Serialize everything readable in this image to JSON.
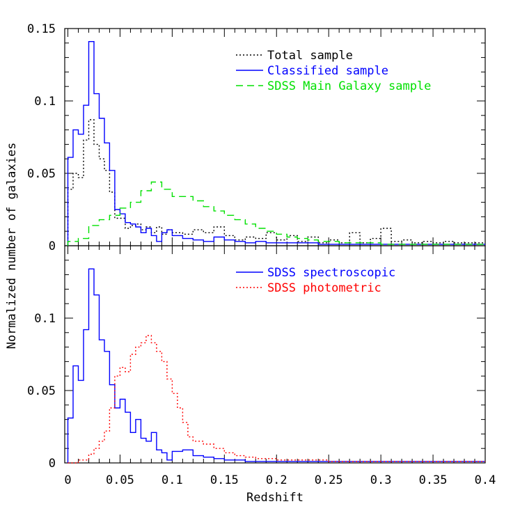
{
  "chart_data": [
    {
      "type": "line",
      "panel": "top",
      "xlabel": "Redshift",
      "ylabel": "Normalized number of galaxies",
      "xlim": [
        -0.003,
        0.4
      ],
      "ylim": [
        0,
        0.15
      ],
      "yticks": [
        "0",
        "0.05",
        "0.1",
        "0.15"
      ],
      "grid": false,
      "legend_position": "top-right",
      "series": [
        {
          "name": "Total sample",
          "color": "#000000",
          "linestyle": "dotted",
          "x": [
            0,
            0.005,
            0.01,
            0.015,
            0.02,
            0.025,
            0.03,
            0.035,
            0.04,
            0.045,
            0.05,
            0.055,
            0.06,
            0.065,
            0.07,
            0.075,
            0.08,
            0.085,
            0.09,
            0.095,
            0.1,
            0.11,
            0.12,
            0.13,
            0.14,
            0.15,
            0.16,
            0.17,
            0.18,
            0.19,
            0.2,
            0.21,
            0.22,
            0.23,
            0.24,
            0.25,
            0.26,
            0.27,
            0.28,
            0.29,
            0.3,
            0.31,
            0.32,
            0.33,
            0.34,
            0.35,
            0.36,
            0.37,
            0.38,
            0.39,
            0.4
          ],
          "y": [
            0.039,
            0.05,
            0.047,
            0.073,
            0.087,
            0.07,
            0.06,
            0.052,
            0.037,
            0.019,
            0.019,
            0.012,
            0.014,
            0.015,
            0.011,
            0.013,
            0.009,
            0.013,
            0.008,
            0.011,
            0.009,
            0.008,
            0.011,
            0.009,
            0.013,
            0.007,
            0.004,
            0.006,
            0.005,
            0.009,
            0.004,
            0.007,
            0.003,
            0.006,
            0.002,
            0.004,
            0.002,
            0.009,
            0.002,
            0.005,
            0.012,
            0.003,
            0.004,
            0.002,
            0.003,
            0.002,
            0.003,
            0.002,
            0.002,
            0.002,
            0.002
          ]
        },
        {
          "name": "Classified sample",
          "color": "#0000ff",
          "linestyle": "solid",
          "x": [
            0,
            0.005,
            0.01,
            0.015,
            0.02,
            0.025,
            0.03,
            0.035,
            0.04,
            0.045,
            0.05,
            0.055,
            0.06,
            0.065,
            0.07,
            0.075,
            0.08,
            0.085,
            0.09,
            0.095,
            0.1,
            0.11,
            0.12,
            0.13,
            0.14,
            0.15,
            0.16,
            0.17,
            0.18,
            0.19,
            0.2,
            0.22,
            0.24,
            0.26,
            0.28,
            0.3,
            0.32,
            0.34,
            0.36,
            0.38,
            0.4
          ],
          "y": [
            0.061,
            0.08,
            0.077,
            0.097,
            0.141,
            0.105,
            0.088,
            0.071,
            0.052,
            0.025,
            0.022,
            0.016,
            0.015,
            0.013,
            0.009,
            0.012,
            0.007,
            0.003,
            0.009,
            0.011,
            0.007,
            0.005,
            0.004,
            0.003,
            0.006,
            0.004,
            0.003,
            0.002,
            0.003,
            0.002,
            0.002,
            0.002,
            0.001,
            0.001,
            0.001,
            0.001,
            0.001,
            0.001,
            0.001,
            0.001,
            0.001
          ]
        },
        {
          "name": "SDSS Main Galaxy sample",
          "color": "#00e000",
          "linestyle": "dashed",
          "x": [
            0,
            0.01,
            0.02,
            0.03,
            0.04,
            0.05,
            0.06,
            0.07,
            0.08,
            0.09,
            0.1,
            0.11,
            0.12,
            0.13,
            0.14,
            0.15,
            0.16,
            0.17,
            0.18,
            0.19,
            0.2,
            0.21,
            0.22,
            0.23,
            0.24,
            0.25,
            0.26,
            0.28,
            0.3,
            0.32,
            0.34,
            0.36,
            0.38,
            0.4
          ],
          "y": [
            0.003,
            0.005,
            0.014,
            0.018,
            0.021,
            0.026,
            0.03,
            0.038,
            0.044,
            0.039,
            0.034,
            0.034,
            0.031,
            0.027,
            0.024,
            0.021,
            0.018,
            0.015,
            0.012,
            0.01,
            0.008,
            0.006,
            0.005,
            0.004,
            0.003,
            0.003,
            0.002,
            0.002,
            0.001,
            0.001,
            0.001,
            0.001,
            0.001,
            0.001
          ]
        }
      ]
    },
    {
      "type": "line",
      "panel": "bottom",
      "xlabel": "Redshift",
      "ylabel": "Normalized number of galaxies",
      "xlim": [
        -0.003,
        0.4
      ],
      "ylim": [
        0,
        0.15
      ],
      "xticks": [
        "0",
        "0.05",
        "0.1",
        "0.15",
        "0.2",
        "0.25",
        "0.3",
        "0.35",
        "0.4"
      ],
      "yticks": [
        "0",
        "0.05",
        "0.1"
      ],
      "grid": false,
      "legend_position": "top-right",
      "series": [
        {
          "name": "SDSS spectroscopic",
          "color": "#0000ff",
          "linestyle": "solid",
          "x": [
            0,
            0.005,
            0.01,
            0.015,
            0.02,
            0.025,
            0.03,
            0.035,
            0.04,
            0.045,
            0.05,
            0.055,
            0.06,
            0.065,
            0.07,
            0.075,
            0.08,
            0.085,
            0.09,
            0.095,
            0.1,
            0.11,
            0.12,
            0.13,
            0.14,
            0.15,
            0.16,
            0.17,
            0.18,
            0.2,
            0.25,
            0.3,
            0.35,
            0.4
          ],
          "y": [
            0.031,
            0.067,
            0.057,
            0.092,
            0.134,
            0.116,
            0.085,
            0.077,
            0.054,
            0.038,
            0.044,
            0.035,
            0.021,
            0.03,
            0.017,
            0.015,
            0.021,
            0.009,
            0.007,
            0.002,
            0.008,
            0.009,
            0.005,
            0.004,
            0.003,
            0.002,
            0.002,
            0.001,
            0.001,
            0.001,
            0.001,
            0.001,
            0.001,
            0.001
          ]
        },
        {
          "name": "SDSS photometric",
          "color": "#ff0000",
          "linestyle": "dotted",
          "x": [
            0,
            0.01,
            0.02,
            0.025,
            0.03,
            0.035,
            0.04,
            0.045,
            0.05,
            0.055,
            0.06,
            0.065,
            0.07,
            0.075,
            0.08,
            0.085,
            0.09,
            0.095,
            0.1,
            0.105,
            0.11,
            0.115,
            0.12,
            0.13,
            0.14,
            0.15,
            0.16,
            0.17,
            0.18,
            0.19,
            0.2,
            0.22,
            0.25,
            0.3,
            0.35,
            0.4
          ],
          "y": [
            0.0,
            0.002,
            0.006,
            0.01,
            0.015,
            0.022,
            0.038,
            0.06,
            0.066,
            0.063,
            0.075,
            0.08,
            0.083,
            0.088,
            0.083,
            0.077,
            0.07,
            0.058,
            0.048,
            0.038,
            0.028,
            0.018,
            0.015,
            0.013,
            0.01,
            0.007,
            0.005,
            0.004,
            0.003,
            0.003,
            0.002,
            0.002,
            0.001,
            0.001,
            0.001,
            0.001
          ]
        }
      ]
    }
  ]
}
